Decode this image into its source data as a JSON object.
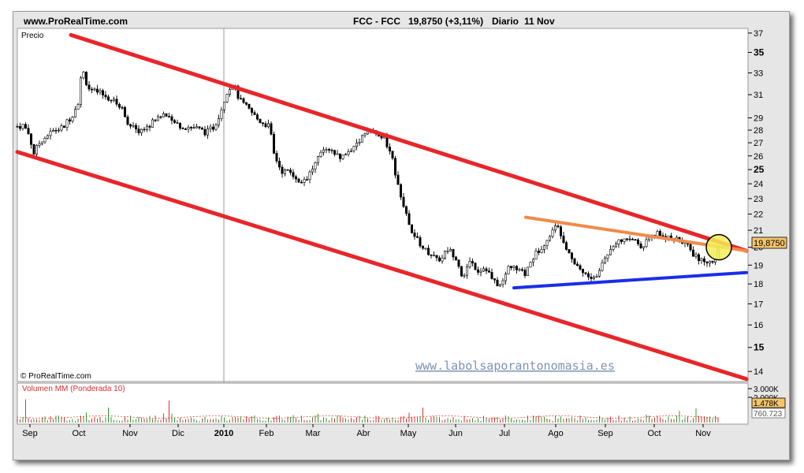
{
  "header": {
    "site": "www.ProRealTime.com",
    "symbol": "FCC - FCC",
    "price_change": "19,8750 (+3,11%)",
    "period": "Diario",
    "date": "11 Nov"
  },
  "price_panel": {
    "label": "Precio",
    "copyright": "© ProRealTime.com",
    "watermark": "www.labolsaporantonomasia.es",
    "last_price_tag": "19,8750"
  },
  "volume_panel": {
    "label": "Volumen MM (Ponderada 10)",
    "axis_top": "3.000K",
    "axis_mid": "2.000K",
    "tag_value": "1.478K",
    "tag_ma": "760.723"
  },
  "colors": {
    "channel": "#e8262a",
    "resistance": "#f08a4b",
    "support": "#1a2ee8",
    "highlight": "#f3ef55",
    "price_tag": "#f5c46a",
    "candle": "#000000"
  },
  "chart_data": {
    "type": "candlestick",
    "scale": "log",
    "y_range": [
      13.6,
      37.5
    ],
    "y_ticks": [
      14,
      15,
      16,
      17,
      18,
      19,
      20,
      21,
      22,
      23,
      24,
      25,
      26,
      27,
      28,
      29,
      31,
      33,
      35,
      37
    ],
    "y_ticks_bold": [
      15,
      25,
      35
    ],
    "x_labels": [
      "Sep",
      "Oct",
      "Nov",
      "Dic",
      "2010",
      "Feb",
      "Mar",
      "Abr",
      "May",
      "Jun",
      "Jul",
      "Ago",
      "Sep",
      "Oct",
      "Nov"
    ],
    "x_label_bold": "2010",
    "price_path": [
      [
        0,
        28.3
      ],
      [
        8,
        28.4
      ],
      [
        16,
        27.5
      ],
      [
        20,
        26.1
      ],
      [
        30,
        27.2
      ],
      [
        45,
        27.9
      ],
      [
        58,
        28.2
      ],
      [
        70,
        29.3
      ],
      [
        78,
        30.5
      ],
      [
        82,
        33.5
      ],
      [
        90,
        31.5
      ],
      [
        105,
        31.1
      ],
      [
        120,
        30.5
      ],
      [
        132,
        29.9
      ],
      [
        142,
        28.4
      ],
      [
        152,
        27.9
      ],
      [
        165,
        28.2
      ],
      [
        175,
        28.9
      ],
      [
        185,
        29.3
      ],
      [
        197,
        28.6
      ],
      [
        210,
        28.3
      ],
      [
        225,
        28.2
      ],
      [
        240,
        27.8
      ],
      [
        250,
        28.3
      ],
      [
        258,
        29.6
      ],
      [
        266,
        31.3
      ],
      [
        274,
        32.0
      ],
      [
        282,
        30.5
      ],
      [
        295,
        29.6
      ],
      [
        306,
        28.8
      ],
      [
        320,
        28.3
      ],
      [
        325,
        26.2
      ],
      [
        335,
        24.9
      ],
      [
        348,
        24.8
      ],
      [
        358,
        24.1
      ],
      [
        368,
        24.5
      ],
      [
        378,
        25.4
      ],
      [
        388,
        26.4
      ],
      [
        400,
        26.2
      ],
      [
        412,
        25.9
      ],
      [
        422,
        26.4
      ],
      [
        432,
        27.1
      ],
      [
        444,
        28.1
      ],
      [
        454,
        27.7
      ],
      [
        466,
        27.3
      ],
      [
        476,
        25.6
      ],
      [
        486,
        23.4
      ],
      [
        496,
        21.4
      ],
      [
        506,
        20.5
      ],
      [
        516,
        19.9
      ],
      [
        526,
        19.6
      ],
      [
        536,
        19.3
      ],
      [
        546,
        19.9
      ],
      [
        556,
        19.5
      ],
      [
        566,
        18.2
      ],
      [
        574,
        19.3
      ],
      [
        584,
        18.7
      ],
      [
        594,
        18.9
      ],
      [
        604,
        18.1
      ],
      [
        614,
        17.9
      ],
      [
        624,
        19.0
      ],
      [
        634,
        18.7
      ],
      [
        644,
        18.5
      ],
      [
        654,
        19.4
      ],
      [
        664,
        20.0
      ],
      [
        674,
        20.6
      ],
      [
        684,
        21.3
      ],
      [
        690,
        20.8
      ],
      [
        696,
        20.1
      ],
      [
        706,
        19.2
      ],
      [
        716,
        18.7
      ],
      [
        726,
        18.3
      ],
      [
        734,
        18.3
      ],
      [
        744,
        19.3
      ],
      [
        754,
        20.0
      ],
      [
        764,
        20.6
      ],
      [
        772,
        20.3
      ],
      [
        782,
        20.5
      ],
      [
        792,
        20.1
      ],
      [
        802,
        20.5
      ],
      [
        812,
        20.8
      ],
      [
        820,
        20.5
      ],
      [
        830,
        20.6
      ],
      [
        840,
        20.3
      ],
      [
        850,
        20.1
      ],
      [
        858,
        19.6
      ],
      [
        866,
        19.2
      ],
      [
        874,
        19.2
      ],
      [
        880,
        19.1
      ],
      [
        886,
        19.5
      ],
      [
        892,
        20.2
      ]
    ],
    "trendlines": [
      {
        "name": "channel-upper",
        "color": "#e8262a",
        "from": [
          68,
          36.8
        ],
        "to": [
          925,
          19.8
        ]
      },
      {
        "name": "channel-lower",
        "color": "#e8262a",
        "from": [
          0,
          26.3
        ],
        "to": [
          925,
          13.7
        ]
      },
      {
        "name": "resistance",
        "color": "#f08a4b",
        "from": [
          645,
          21.8
        ],
        "to": [
          925,
          19.8
        ]
      },
      {
        "name": "support",
        "color": "#1a2ee8",
        "from": [
          630,
          17.8
        ],
        "to": [
          925,
          18.6
        ]
      }
    ],
    "highlight_circle": {
      "center": [
        890,
        20.0
      ]
    },
    "volume": {
      "axis_max": 3000,
      "last_volume": 1478,
      "last_ma": 760.723
    }
  }
}
